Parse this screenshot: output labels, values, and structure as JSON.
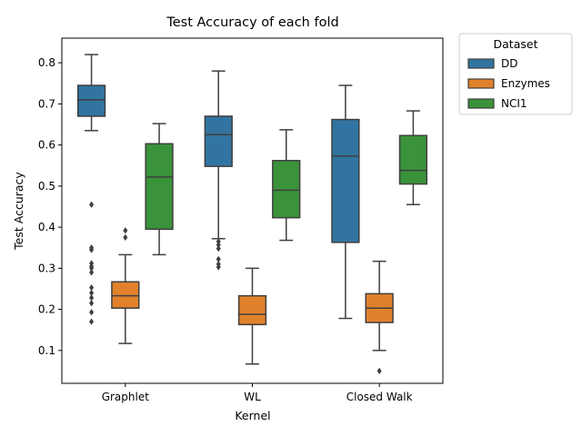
{
  "chart_data": {
    "type": "box",
    "title": "Test Accuracy of each fold",
    "xlabel": "Kernel",
    "ylabel": "Test Accuracy",
    "ylim": [
      0.02,
      0.86
    ],
    "yticks": [
      0.1,
      0.2,
      0.3,
      0.4,
      0.5,
      0.6,
      0.7,
      0.8
    ],
    "categories": [
      "Graphlet",
      "WL",
      "Closed Walk"
    ],
    "grid": false,
    "legend": {
      "title": "Dataset",
      "placement": "outside-top-right"
    },
    "series": [
      {
        "name": "DD",
        "color": "#3274a1",
        "boxes": [
          {
            "whisker_low": 0.635,
            "q1": 0.67,
            "median": 0.71,
            "q3": 0.745,
            "whisker_high": 0.82,
            "outliers": [
              0.455,
              0.35,
              0.345,
              0.312,
              0.305,
              0.3,
              0.29,
              0.253,
              0.24,
              0.228,
              0.215,
              0.193,
              0.17
            ]
          },
          {
            "whisker_low": 0.372,
            "q1": 0.548,
            "median": 0.625,
            "q3": 0.67,
            "whisker_high": 0.78,
            "outliers": [
              0.365,
              0.357,
              0.348,
              0.322,
              0.31,
              0.303
            ]
          },
          {
            "whisker_low": 0.178,
            "q1": 0.363,
            "median": 0.573,
            "q3": 0.662,
            "whisker_high": 0.745,
            "outliers": []
          }
        ]
      },
      {
        "name": "Enzymes",
        "color": "#e1812c",
        "boxes": [
          {
            "whisker_low": 0.117,
            "q1": 0.203,
            "median": 0.233,
            "q3": 0.267,
            "whisker_high": 0.333,
            "outliers": [
              0.392,
              0.375
            ]
          },
          {
            "whisker_low": 0.067,
            "q1": 0.163,
            "median": 0.188,
            "q3": 0.233,
            "whisker_high": 0.3,
            "outliers": []
          },
          {
            "whisker_low": 0.1,
            "q1": 0.168,
            "median": 0.203,
            "q3": 0.238,
            "whisker_high": 0.317,
            "outliers": [
              0.05
            ]
          }
        ]
      },
      {
        "name": "NCI1",
        "color": "#3a923a",
        "boxes": [
          {
            "whisker_low": 0.333,
            "q1": 0.395,
            "median": 0.522,
            "q3": 0.603,
            "whisker_high": 0.652,
            "outliers": []
          },
          {
            "whisker_low": 0.368,
            "q1": 0.423,
            "median": 0.49,
            "q3": 0.562,
            "whisker_high": 0.637,
            "outliers": []
          },
          {
            "whisker_low": 0.455,
            "q1": 0.505,
            "median": 0.538,
            "q3": 0.623,
            "whisker_high": 0.683,
            "outliers": []
          }
        ]
      }
    ]
  }
}
